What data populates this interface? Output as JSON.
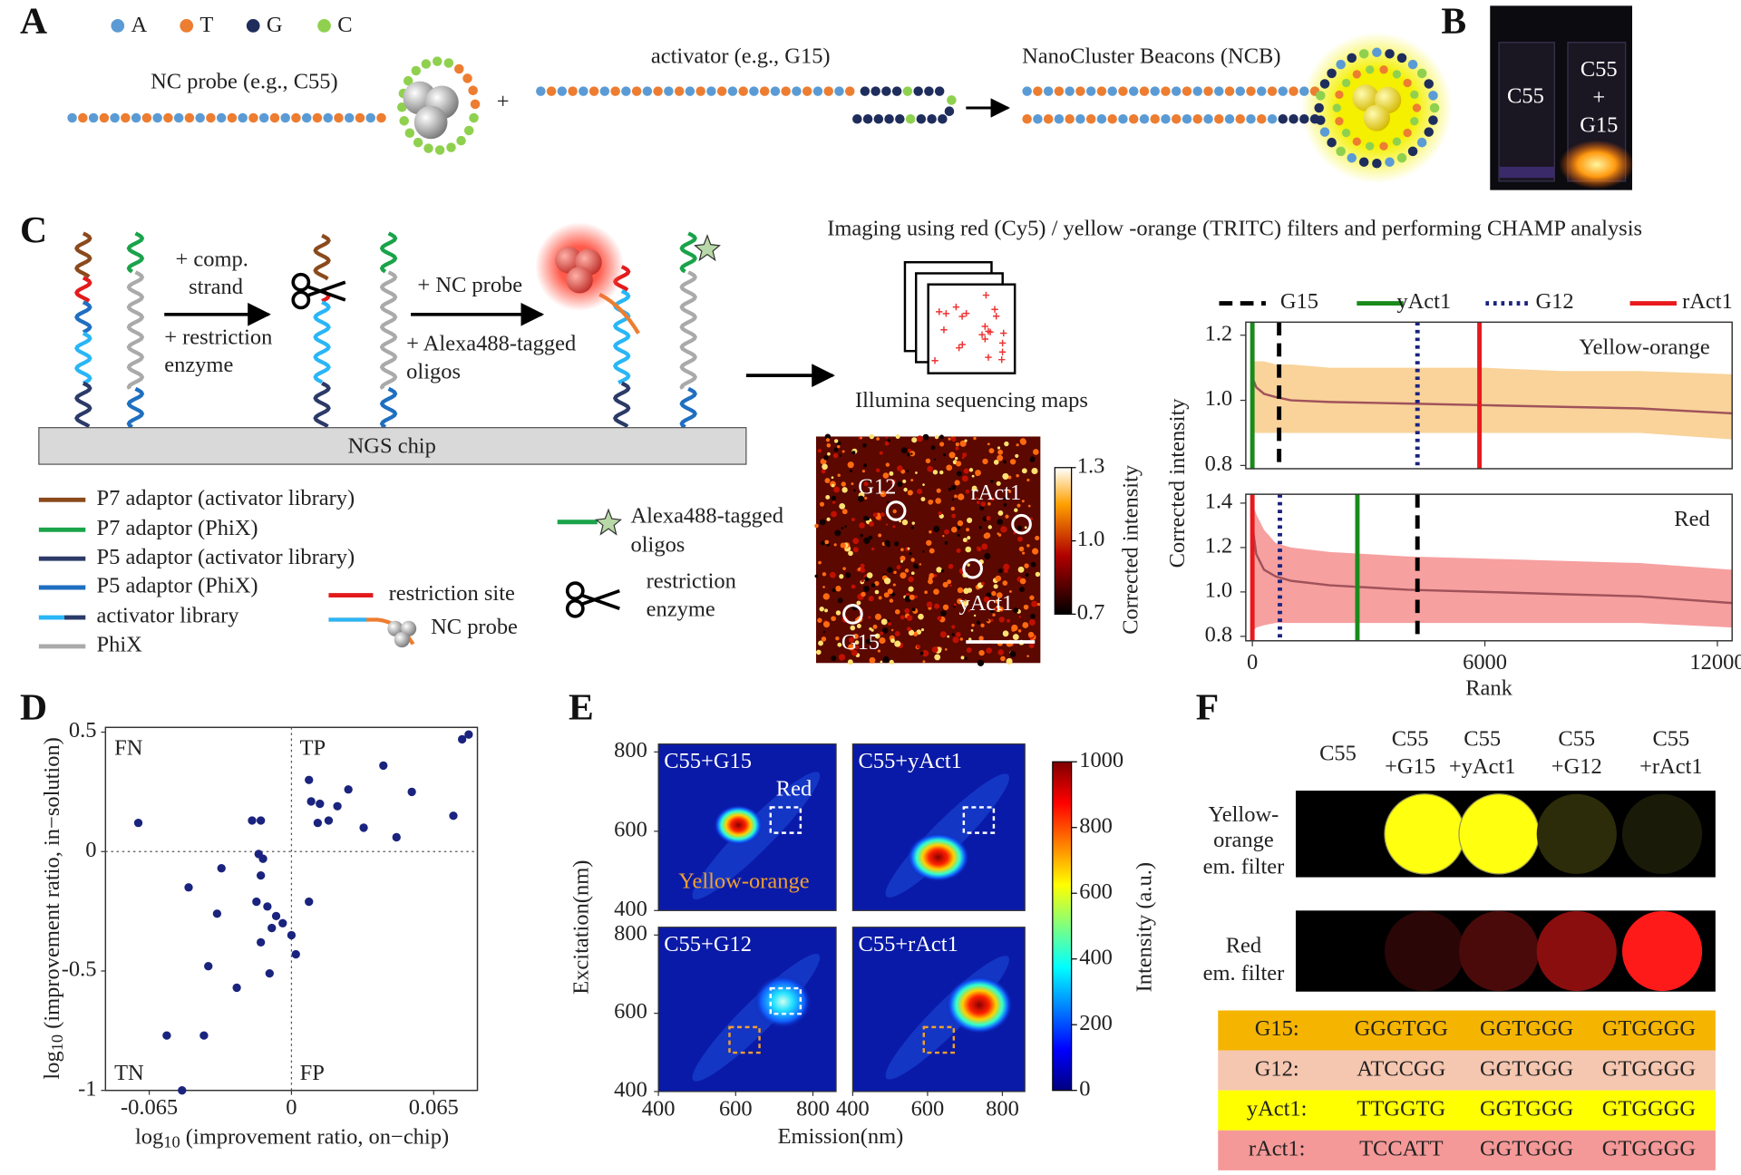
{
  "panel_labels": [
    "A",
    "B",
    "C",
    "D",
    "E",
    "F"
  ],
  "a": {
    "legend": [
      "A",
      "T",
      "G",
      "C"
    ],
    "legend_colors": [
      "#5b9bd5",
      "#ed7d31",
      "#1f2d5c",
      "#8fd14f"
    ],
    "nc_probe": "NC probe (e.g., C55)",
    "plus": "+",
    "activator": "activator (e.g., G15)",
    "ncb": "NanoCluster Beacons (NCB)"
  },
  "b": {
    "left": "C55",
    "right": [
      "C55",
      "+",
      "G15"
    ]
  },
  "c": {
    "step1": [
      "+ comp.",
      "strand"
    ],
    "step2": [
      "+ restriction",
      "enzyme"
    ],
    "step3": "+ NC probe",
    "step4": [
      "+ Alexa488-tagged",
      "oligos"
    ],
    "chip": "NGS chip",
    "imaging": "Imaging using red (Cy5) / yellow -orange (TRITC) filters and performing CHAMP analysis",
    "maps": "Illumina sequencing maps",
    "legend": [
      "P7 adaptor (activator library)",
      "P7 adaptor (PhiX)",
      "P5 adaptor (activator library)",
      "P5 adaptor (PhiX)",
      "activator library",
      "PhiX"
    ],
    "legend_colors": [
      "#8b4a1c",
      "#1aa34a",
      "#2b3a67",
      "#1f6fc1",
      "#29b6f6",
      "#aaaaaa"
    ],
    "legend2": [
      "restriction site",
      "NC probe"
    ],
    "alexa": [
      "Alexa488-tagged",
      "oligos"
    ],
    "enzyme": [
      "restriction",
      "enzyme"
    ],
    "heatmap": {
      "labels": [
        "G12",
        "rAct1",
        "yAct1",
        "G15"
      ],
      "colorbar_lim": [
        0.7,
        1.3
      ],
      "colorbar_ticks": [
        1.3,
        {
          "value": 1,
          "label": "1.0"
        },
        0.7
      ],
      "colorbar_label": "Corrected intensity"
    }
  },
  "c_legend": [
    {
      "name": "G15",
      "color": "#000000",
      "style": "dash"
    },
    {
      "name": "yAct1",
      "color": "#1a8a1a",
      "style": "solid"
    },
    {
      "name": "G12",
      "color": "#1a237e",
      "style": "dot"
    },
    {
      "name": "rAct1",
      "color": "#e8191d",
      "style": "solid"
    }
  ],
  "chart_data": [
    {
      "type": "line",
      "title": "Yellow-orange",
      "ylabel": "Corrected intensity",
      "xlim": [
        -170,
        12380
      ],
      "ylim": [
        0.79,
        1.24
      ],
      "yticks": [
        0.8,
        {
          "value": 1,
          "label": "1.0"
        },
        1.2
      ],
      "marker_x": [
        690,
        0,
        4260,
        5860
      ],
      "band_color": "#f9d39a",
      "curve": {
        "color": "#a0525a",
        "x": [
          0,
          100,
          300,
          600,
          1000,
          2000,
          4000,
          6000,
          8000,
          10000,
          12380
        ],
        "values": [
          1.07,
          1.04,
          1.02,
          1.01,
          1.0,
          0.995,
          0.99,
          0.985,
          0.98,
          0.975,
          0.96
        ],
        "lower": [
          0.9,
          0.9,
          0.9,
          0.9,
          0.9,
          0.9,
          0.9,
          0.9,
          0.9,
          0.9,
          0.88
        ],
        "upper": [
          1.12,
          1.12,
          1.12,
          1.11,
          1.11,
          1.1,
          1.1,
          1.1,
          1.09,
          1.09,
          1.08
        ]
      }
    },
    {
      "type": "line",
      "title": "Red",
      "xlabel": "Rank",
      "xlim": [
        -170,
        12380
      ],
      "ylim": [
        0.78,
        1.44
      ],
      "xticks": [
        0,
        6000,
        12000
      ],
      "yticks": [
        0.8,
        {
          "value": 1,
          "label": "1.0"
        },
        1.2,
        1.4
      ],
      "marker_x": [
        4260,
        2710,
        710,
        0
      ],
      "band_color": "#f6a0a0",
      "curve": {
        "color": "#a0525a",
        "x": [
          0,
          100,
          300,
          600,
          1000,
          2000,
          4000,
          6000,
          8000,
          10000,
          12380
        ],
        "values": [
          1.3,
          1.17,
          1.1,
          1.07,
          1.05,
          1.03,
          1.01,
          1.0,
          0.99,
          0.98,
          0.95
        ],
        "lower": [
          0.82,
          0.84,
          0.85,
          0.86,
          0.86,
          0.86,
          0.86,
          0.86,
          0.86,
          0.86,
          0.84
        ],
        "upper": [
          1.4,
          1.35,
          1.28,
          1.22,
          1.2,
          1.18,
          1.16,
          1.15,
          1.14,
          1.13,
          1.1
        ]
      }
    },
    {
      "type": "scatter",
      "color": "#1a237e",
      "xlim": [
        -0.085,
        0.085
      ],
      "ylim": [
        -1,
        0.52
      ],
      "xticks": [
        -0.065,
        0,
        0.065
      ],
      "yticks": [
        -1,
        -0.5,
        0,
        0.5
      ],
      "quadrants": [
        "FN",
        "TP",
        "TN",
        "FP"
      ],
      "xlabel": {
        "base": "log",
        "sub": "10",
        "text": " (improvement ratio, on−chip)"
      },
      "ylabel": {
        "base": "log",
        "sub": "10",
        "text": " (improvement ratio, in−solution)"
      },
      "x": [
        -0.07,
        -0.018,
        -0.014,
        -0.015,
        -0.013,
        -0.032,
        -0.014,
        -0.047,
        -0.016,
        -0.034,
        -0.011,
        -0.007,
        -0.009,
        -0.004,
        0.0,
        0.008,
        -0.014,
        0.002,
        -0.038,
        -0.01,
        -0.025,
        -0.057,
        -0.04,
        -0.05,
        0.008,
        0.026,
        0.009,
        0.013,
        0.021,
        0.017,
        0.012,
        0.042,
        0.033,
        0.055,
        0.048,
        0.074,
        0.078,
        0.081
      ],
      "values": [
        0.12,
        0.13,
        0.13,
        -0.01,
        -0.03,
        -0.07,
        -0.1,
        -0.15,
        -0.21,
        -0.26,
        -0.23,
        -0.27,
        -0.32,
        -0.3,
        -0.35,
        -0.21,
        -0.38,
        -0.43,
        -0.48,
        -0.51,
        -0.57,
        -0.77,
        -0.77,
        -1.0,
        0.3,
        0.26,
        0.21,
        0.2,
        0.19,
        0.13,
        0.12,
        0.36,
        0.1,
        0.25,
        0.06,
        0.15,
        0.47,
        0.49
      ]
    }
  ],
  "e": {
    "panels": [
      "C55+G15",
      "C55+yAct1",
      "C55+G12",
      "C55+rAct1"
    ],
    "red_label": "Red",
    "yo_label": "Yellow-orange",
    "xlim": [
      400,
      860
    ],
    "ylim": [
      400,
      820
    ],
    "xticks": [
      400,
      600,
      800
    ],
    "yticks": [
      400,
      600,
      800
    ],
    "xlabel": "Emission(nm)",
    "ylabel": "Excitation(nm)",
    "colorbar_lim": [
      0,
      1000
    ],
    "colorbar_ticks": [
      0,
      200,
      400,
      600,
      800,
      1000
    ],
    "colorbar_label": "Intensity (a.u.)"
  },
  "f": {
    "headers": [
      [
        "C55"
      ],
      [
        "C55",
        "+G15"
      ],
      [
        "C55",
        "+yAct1"
      ],
      [
        "C55",
        "+G12"
      ],
      [
        "C55",
        "+rAct1"
      ]
    ],
    "rows": [
      [
        "Yellow-",
        "orange",
        "em. filter"
      ],
      [
        "Red",
        "em. filter"
      ]
    ],
    "spot_colors": [
      [
        "#000000",
        "#ffff10",
        "#ffff10",
        "#2c2c0a",
        "#1a1a08"
      ],
      [
        "#000000",
        "#2a0606",
        "#4a0a0a",
        "#8b0e0e",
        "#ff1a1a"
      ]
    ],
    "table": [
      [
        "G15:",
        "GGGTGG",
        "GGTGGG",
        "GTGGGG"
      ],
      [
        "G12:",
        "ATCCGG",
        "GGTGGG",
        "GTGGGG"
      ],
      [
        "yAct1:",
        "TTGGTG",
        "GGTGGG",
        "GTGGGG"
      ],
      [
        "rAct1:",
        "TCCATT",
        "GGTGGG",
        "GTGGGG"
      ]
    ],
    "table_colors": [
      "#f5b400",
      "#f5c6b0",
      "#ffff00",
      "#f59898"
    ]
  }
}
